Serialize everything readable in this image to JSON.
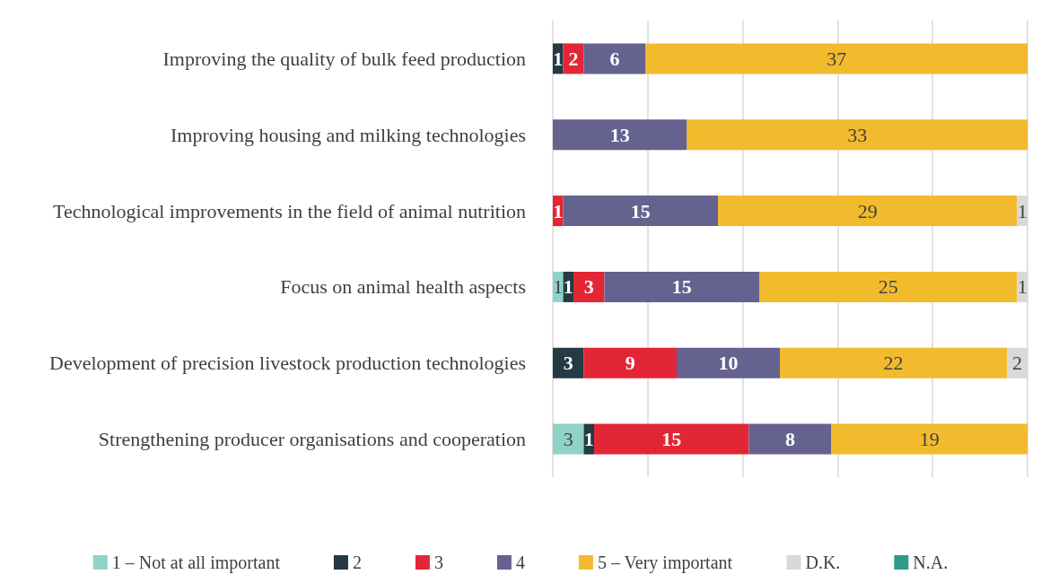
{
  "chart_data": {
    "type": "bar",
    "orientation": "horizontal",
    "stacked": true,
    "data_labels": true,
    "grid": "x",
    "legend": "bottom",
    "tick_labels": "y",
    "categories": [
      "Improving the quality of bulk feed production",
      "Improving housing and milking technologies",
      "Technological improvements in the field of animal nutrition",
      "Focus on animal health aspects",
      "Development of precision livestock production technologies",
      "Strengthening producer organisations and cooperation"
    ],
    "xlim": [
      0,
      46
    ],
    "xticks": [
      {
        "value": 0,
        "label": null
      },
      {
        "value": 9.2,
        "label": null
      },
      {
        "value": 18.4,
        "label": null
      },
      {
        "value": 27.6,
        "label": null
      },
      {
        "value": 36.8,
        "label": null
      },
      {
        "value": 46,
        "label": null
      }
    ],
    "series": [
      {
        "name": "1 – Not at all important",
        "color": "#8fd3c8",
        "values": [
          null,
          null,
          null,
          1,
          null,
          3
        ]
      },
      {
        "name": "2",
        "color": "#243a45",
        "values": [
          1,
          null,
          null,
          1,
          3,
          1
        ]
      },
      {
        "name": "3",
        "color": "#e32636",
        "values": [
          2,
          null,
          1,
          3,
          9,
          15
        ]
      },
      {
        "name": "4",
        "color": "#65628f",
        "values": [
          6,
          13,
          15,
          15,
          10,
          8
        ]
      },
      {
        "name": "5 – Very important",
        "color": "#f2bb2e",
        "values": [
          37,
          33,
          29,
          25,
          22,
          19
        ]
      },
      {
        "name": "D.K.",
        "color": "#d9d9d9",
        "values": [
          null,
          null,
          1,
          1,
          2,
          null
        ]
      },
      {
        "name": "N.A.",
        "color": "#2f9a88",
        "values": [
          null,
          null,
          null,
          null,
          null,
          null
        ]
      }
    ]
  }
}
